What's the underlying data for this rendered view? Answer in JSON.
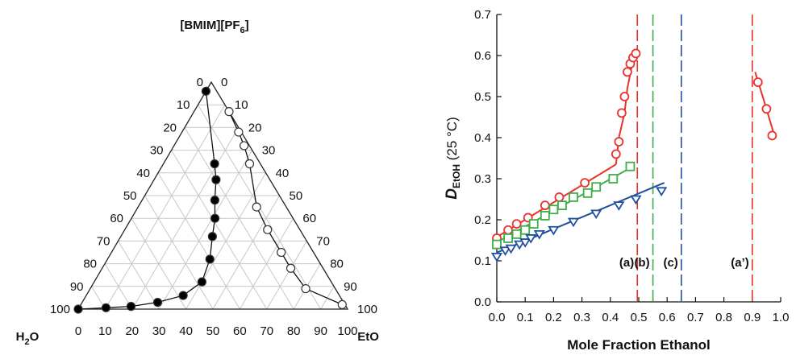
{
  "chart_data": [
    {
      "type": "scatter",
      "subtype": "ternary",
      "vertex_labels": {
        "top": "[BMIM][PF6]",
        "bottom_left": "H2O",
        "bottom_right": "EtOH"
      },
      "ticks": [
        "0",
        "10",
        "20",
        "30",
        "40",
        "50",
        "60",
        "70",
        "80",
        "90",
        "100"
      ],
      "grid": true,
      "series": [
        {
          "marker": "filled-circle",
          "color": "#000000",
          "line": true,
          "points": [
            {
              "il": 96,
              "etoh": 0
            },
            {
              "il": 64,
              "etoh": 19
            },
            {
              "il": 57,
              "etoh": 23
            },
            {
              "il": 48,
              "etoh": 27
            },
            {
              "il": 40,
              "etoh": 31
            },
            {
              "il": 32,
              "etoh": 34
            },
            {
              "il": 22,
              "etoh": 38
            },
            {
              "il": 12,
              "etoh": 40
            },
            {
              "il": 6,
              "etoh": 36
            },
            {
              "il": 3,
              "etoh": 28
            },
            {
              "il": 1.2,
              "etoh": 19
            },
            {
              "il": 0.6,
              "etoh": 10
            },
            {
              "il": 0,
              "etoh": 0
            }
          ]
        },
        {
          "marker": "open-circle",
          "color": "#000000",
          "line": true,
          "points": [
            {
              "il": 87,
              "etoh": 13
            },
            {
              "il": 78,
              "etoh": 21
            },
            {
              "il": 72,
              "etoh": 26
            },
            {
              "il": 64,
              "etoh": 32
            },
            {
              "il": 45,
              "etoh": 44
            },
            {
              "il": 35,
              "etoh": 53
            },
            {
              "il": 25,
              "etoh": 63
            },
            {
              "il": 18,
              "etoh": 70
            },
            {
              "il": 9,
              "etoh": 80
            },
            {
              "il": 2,
              "etoh": 97
            }
          ]
        }
      ]
    },
    {
      "type": "scatter",
      "xlabel": "Mole Fraction Ethanol",
      "ylabel_main": "D",
      "ylabel_sub": "EtOH",
      "ylabel_tail": " (25 °C)",
      "xlim": [
        0,
        1
      ],
      "ylim": [
        0,
        0.7
      ],
      "xticks": [
        "0.0",
        "0.1",
        "0.2",
        "0.3",
        "0.4",
        "0.5",
        "0.6",
        "0.7",
        "0.8",
        "0.9",
        "1.0"
      ],
      "yticks": [
        "0.0",
        "0.1",
        "0.2",
        "0.3",
        "0.4",
        "0.5",
        "0.6",
        "0.7"
      ],
      "grid": false,
      "series": [
        {
          "id": "a",
          "marker": "circle",
          "color": "#e8322c",
          "x": [
            0.0,
            0.04,
            0.07,
            0.11,
            0.17,
            0.22,
            0.31,
            0.42,
            0.43,
            0.44,
            0.45,
            0.46,
            0.47,
            0.48,
            0.49
          ],
          "y": [
            0.155,
            0.175,
            0.19,
            0.205,
            0.235,
            0.255,
            0.29,
            0.36,
            0.39,
            0.46,
            0.5,
            0.56,
            0.58,
            0.595,
            0.605
          ],
          "fit_lines": [
            [
              [
                0.0,
                0.158
              ],
              [
                0.42,
                0.335
              ]
            ],
            [
              [
                0.42,
                0.335
              ],
              [
                0.43,
                0.4
              ],
              [
                0.45,
                0.46
              ],
              [
                0.46,
                0.52
              ],
              [
                0.48,
                0.59
              ],
              [
                0.495,
                0.61
              ]
            ]
          ]
        },
        {
          "id": "a-prime",
          "marker": "circle",
          "color": "#e8322c",
          "x": [
            0.92,
            0.95,
            0.97
          ],
          "y": [
            0.535,
            0.47,
            0.405
          ],
          "fit_lines": [
            [
              [
                0.91,
                0.56
              ],
              [
                0.95,
                0.47
              ],
              [
                0.98,
                0.4
              ]
            ]
          ]
        },
        {
          "id": "b",
          "marker": "square",
          "color": "#3fae49",
          "x": [
            0.0,
            0.04,
            0.07,
            0.1,
            0.13,
            0.17,
            0.2,
            0.23,
            0.27,
            0.32,
            0.35,
            0.41,
            0.47
          ],
          "y": [
            0.14,
            0.155,
            0.165,
            0.175,
            0.19,
            0.21,
            0.225,
            0.235,
            0.255,
            0.265,
            0.28,
            0.3,
            0.33
          ],
          "fit_lines": [
            [
              [
                0.0,
                0.145
              ],
              [
                0.48,
                0.33
              ]
            ]
          ]
        },
        {
          "id": "c",
          "marker": "triangle-down",
          "color": "#1f4fa0",
          "x": [
            0.0,
            0.03,
            0.05,
            0.08,
            0.1,
            0.12,
            0.15,
            0.2,
            0.27,
            0.35,
            0.43,
            0.49,
            0.58
          ],
          "y": [
            0.11,
            0.125,
            0.13,
            0.14,
            0.145,
            0.155,
            0.165,
            0.175,
            0.195,
            0.215,
            0.235,
            0.25,
            0.27
          ],
          "fit_lines": [
            [
              [
                0.0,
                0.12
              ],
              [
                0.59,
                0.29
              ]
            ]
          ]
        }
      ],
      "phase_boundaries": [
        {
          "x": 0.495,
          "color": "#e8322c",
          "label": "(a)"
        },
        {
          "x": 0.55,
          "color": "#3fae49",
          "label": "(b)"
        },
        {
          "x": 0.65,
          "color": "#1f4fa0",
          "label": "(c)"
        },
        {
          "x": 0.9,
          "color": "#e8322c",
          "label": "(a’)"
        }
      ]
    }
  ]
}
